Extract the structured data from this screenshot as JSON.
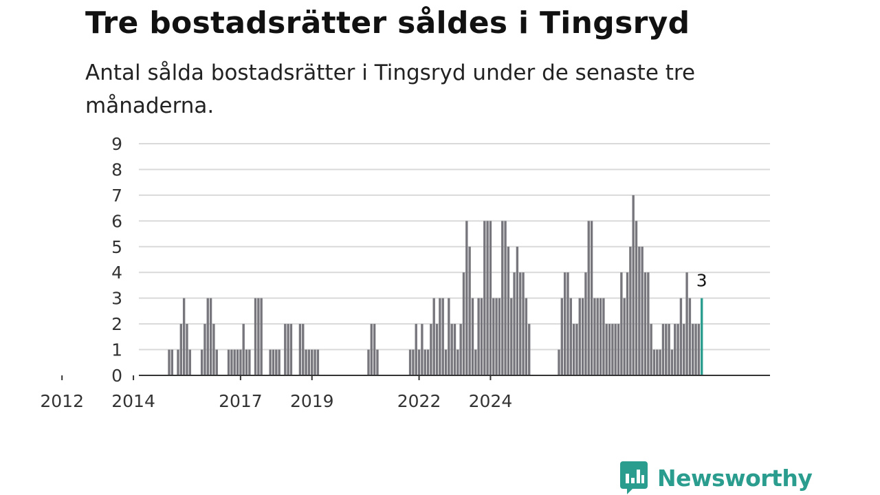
{
  "title": "Tre bostadsrätter såldes i Tingsryd",
  "subtitle": "Antal sålda bostadsrätter i Tingsryd under de senaste tre månaderna.",
  "brand": {
    "name": "Newsworthy",
    "icon": "newsworthy-logo-icon",
    "color": "#2a9d8f"
  },
  "colors": {
    "bar": "#76767c",
    "highlight": "#2a9d8f",
    "grid": "#d9d9d9",
    "axis": "#333333"
  },
  "chart_data": {
    "type": "bar",
    "x_ticks": [
      "2012",
      "2014",
      "2017",
      "2019",
      "2022",
      "2024"
    ],
    "y_ticks": [
      0,
      1,
      2,
      3,
      4,
      5,
      6,
      7,
      8,
      9
    ],
    "ylim": [
      0,
      9
    ],
    "grid": true,
    "x_start": "2011-01",
    "values": [
      0,
      0,
      0,
      0,
      0,
      0,
      0,
      0,
      0,
      0,
      0,
      0,
      0,
      0,
      0,
      0,
      0,
      0,
      0,
      0,
      0,
      0,
      0,
      0,
      0,
      0,
      0,
      0,
      0,
      0,
      0,
      0,
      0,
      0,
      0,
      0,
      0,
      0,
      0,
      0,
      0,
      0,
      0,
      0,
      0,
      0,
      0,
      0,
      1,
      1,
      0,
      1,
      2,
      3,
      2,
      1,
      0,
      0,
      0,
      1,
      2,
      3,
      3,
      2,
      1,
      0,
      0,
      0,
      1,
      1,
      1,
      1,
      1,
      2,
      1,
      1,
      0,
      3,
      3,
      3,
      0,
      0,
      1,
      1,
      1,
      1,
      0,
      2,
      2,
      2,
      0,
      0,
      2,
      2,
      1,
      1,
      1,
      1,
      1,
      0,
      0,
      0,
      0,
      0,
      0,
      0,
      0,
      0,
      0,
      0,
      0,
      0,
      0,
      0,
      0,
      1,
      2,
      2,
      1,
      0,
      0,
      0,
      0,
      0,
      0,
      0,
      0,
      0,
      0,
      1,
      1,
      2,
      1,
      2,
      1,
      1,
      2,
      3,
      2,
      3,
      3,
      1,
      3,
      2,
      2,
      1,
      2,
      4,
      6,
      5,
      3,
      1,
      3,
      3,
      6,
      6,
      6,
      3,
      3,
      3,
      6,
      6,
      5,
      3,
      4,
      5,
      4,
      4,
      3,
      2,
      0,
      0,
      0,
      0,
      0,
      0,
      0,
      0,
      0,
      1,
      3,
      4,
      4,
      3,
      2,
      2,
      3,
      3,
      4,
      6,
      6,
      3,
      3,
      3,
      3,
      2,
      2,
      2,
      2,
      2,
      4,
      3,
      4,
      5,
      7,
      6,
      5,
      5,
      4,
      4,
      2,
      1,
      1,
      1,
      2,
      2,
      2,
      1,
      2,
      2,
      3,
      2,
      4,
      3,
      2,
      2,
      2,
      3
    ],
    "highlight": {
      "label": "3",
      "value": 3
    }
  }
}
